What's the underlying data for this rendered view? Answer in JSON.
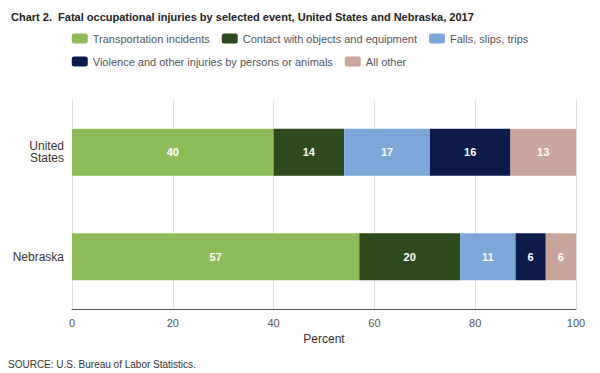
{
  "chart_data": {
    "type": "bar",
    "orientation": "horizontal",
    "stacked": true,
    "title": "Chart 2.  Fatal occupational injuries by selected event, United States and Nebraska, 2017",
    "categories": [
      "United\nStates",
      "Nebraska"
    ],
    "series": [
      {
        "name": "Transportation incidents",
        "color": "#8fbc5a",
        "values": [
          40,
          57
        ]
      },
      {
        "name": "Contact with objects and equipment",
        "color": "#2d4a1e",
        "values": [
          14,
          20
        ]
      },
      {
        "name": "Falls, slips, trips",
        "color": "#7da7d9",
        "values": [
          17,
          11
        ]
      },
      {
        "name": "Violence and other injuries by persons or animals",
        "color": "#0d1b4b",
        "values": [
          16,
          6
        ]
      },
      {
        "name": "All other",
        "color": "#c9a49a",
        "values": [
          13,
          6
        ]
      }
    ],
    "xlabel": "Percent",
    "xlim": [
      0,
      100
    ],
    "xticks": [
      0,
      20,
      40,
      60,
      80,
      100
    ],
    "grid": true,
    "legend": "top",
    "data_labels": true,
    "annotations": [
      "SOURCE: U.S. Bureau of Labor Statistics."
    ]
  }
}
